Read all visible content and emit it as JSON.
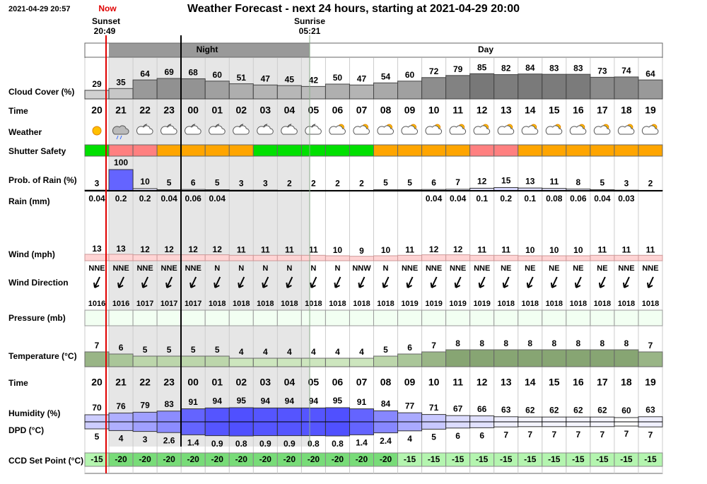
{
  "header": {
    "timestamp": "2021-04-29 20:57",
    "now": "Now",
    "title": "Weather Forecast - next 24 hours, starting at 2021-04-29 20:00",
    "sunset_label": "Sunset",
    "sunset_time": "20:49",
    "sunrise_label": "Sunrise",
    "sunrise_time": "05:21",
    "night": "Night",
    "day": "Day"
  },
  "row_labels": {
    "cloud_cover": "Cloud Cover (%)",
    "time": "Time",
    "weather": "Weather",
    "shutter_safety": "Shutter Safety",
    "rain_prob": "Prob. of Rain (%)",
    "rain": "Rain (mm)",
    "wind": "Wind (mph)",
    "wind_direction": "Wind Direction",
    "pressure": "Pressure (mb)",
    "temperature": "Temperature (°C)",
    "time2": "Time",
    "humidity": "Humidity (%)",
    "dpd": "DPD (°C)",
    "ccd": "CCD Set Point (°C)"
  },
  "hours": [
    "20",
    "21",
    "22",
    "23",
    "00",
    "01",
    "02",
    "03",
    "04",
    "05",
    "06",
    "07",
    "08",
    "09",
    "10",
    "11",
    "12",
    "13",
    "14",
    "15",
    "16",
    "17",
    "18",
    "19"
  ],
  "cloud_cover": [
    29,
    35,
    64,
    69,
    68,
    60,
    51,
    47,
    45,
    42,
    50,
    47,
    54,
    60,
    72,
    79,
    85,
    82,
    84,
    83,
    83,
    73,
    74,
    64
  ],
  "shutter_safety": [
    "#00e000",
    "#ff8080",
    "#ff8080",
    "#ffa500",
    "#ffa500",
    "#ffa500",
    "#ffa500",
    "#00e000",
    "#00e000",
    "#00e000",
    "#00e000",
    "#00e000",
    "#ffa500",
    "#ffa500",
    "#ffa500",
    "#ffa500",
    "#ff8080",
    "#ff8080",
    "#ffa500",
    "#ffa500",
    "#ffa500",
    "#ffa500",
    "#ffa500",
    "#ffa500"
  ],
  "rain_prob": [
    3,
    100,
    10,
    5,
    6,
    5,
    3,
    3,
    2,
    2,
    2,
    2,
    5,
    5,
    6,
    7,
    12,
    15,
    13,
    11,
    8,
    5,
    3,
    2
  ],
  "rain": [
    0.04,
    0.2,
    0.2,
    0.04,
    0.06,
    0.04,
    null,
    null,
    null,
    null,
    null,
    null,
    null,
    null,
    0.04,
    0.04,
    0.1,
    0.2,
    0.1,
    0.08,
    0.06,
    0.04,
    0.03,
    null
  ],
  "wind": [
    13,
    13,
    12,
    12,
    12,
    12,
    11,
    11,
    11,
    11,
    10,
    9,
    10,
    11,
    12,
    12,
    11,
    11,
    10,
    10,
    10,
    11,
    11,
    11
  ],
  "wind_direction": [
    "NNE",
    "NNE",
    "NNE",
    "NNE",
    "NNE",
    "N",
    "N",
    "N",
    "N",
    "N",
    "N",
    "NNW",
    "N",
    "NNE",
    "NNE",
    "NNE",
    "NNE",
    "NE",
    "NE",
    "NE",
    "NE",
    "NE",
    "NNE",
    "NNE"
  ],
  "pressure": [
    1016,
    1016,
    1017,
    1017,
    1017,
    1018,
    1018,
    1018,
    1018,
    1018,
    1018,
    1018,
    1018,
    1019,
    1019,
    1019,
    1019,
    1018,
    1018,
    1018,
    1018,
    1018,
    1018,
    1018
  ],
  "temperature": [
    7,
    6,
    5,
    5,
    5,
    5,
    4,
    4,
    4,
    4,
    4,
    4,
    5,
    6,
    7,
    8,
    8,
    8,
    8,
    8,
    8,
    8,
    8,
    7
  ],
  "humidity": [
    70,
    76,
    79,
    83,
    91,
    94,
    95,
    94,
    94,
    94,
    95,
    91,
    84,
    77,
    71,
    67,
    66,
    63,
    62,
    62,
    62,
    62,
    60,
    63
  ],
  "dpd": [
    5,
    4,
    3,
    2.6,
    1.4,
    0.9,
    0.8,
    0.9,
    0.9,
    0.8,
    0.8,
    1.4,
    2.4,
    4,
    5,
    6,
    6,
    7,
    7,
    7,
    7,
    7,
    7,
    7
  ],
  "ccd_set_point": [
    -15,
    -20,
    -20,
    -20,
    -20,
    -20,
    -20,
    -20,
    -20,
    -20,
    -20,
    -20,
    -20,
    -15,
    -15,
    -15,
    -15,
    -15,
    -15,
    -15,
    -15,
    -15,
    -15,
    -15
  ]
}
